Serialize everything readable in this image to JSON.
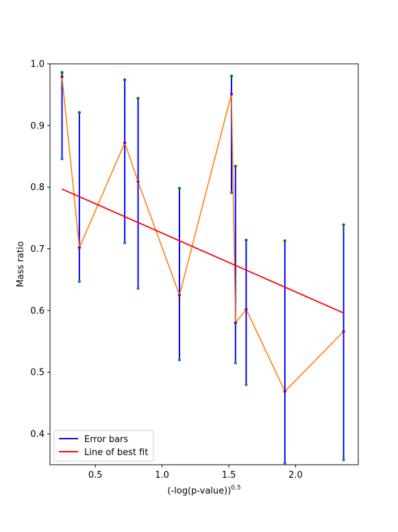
{
  "chart_data": {
    "type": "line",
    "xlabel": "(-log(p-value))",
    "xlabel_superscript": "0.5",
    "ylabel": "Mass ratio",
    "xlim": [
      0.16,
      2.47
    ],
    "ylim": [
      0.35,
      1.0
    ],
    "xticks": [
      "0.5",
      "1.0",
      "1.5",
      "2.0"
    ],
    "xtick_values": [
      0.5,
      1.0,
      1.5,
      2.0
    ],
    "yticks": [
      "0.4",
      "0.5",
      "0.6",
      "0.7",
      "0.8",
      "0.9",
      "1.0"
    ],
    "ytick_values": [
      0.4,
      0.5,
      0.6,
      0.7,
      0.8,
      0.9,
      1.0
    ],
    "legend_position": "lower-left",
    "legend": [
      {
        "label": "Error bars",
        "color": "#0000ff"
      },
      {
        "label": "Line of best fit",
        "color": "#ff0000"
      }
    ],
    "points": [
      {
        "x": 0.25,
        "y": 0.979,
        "lo": 0.846,
        "hi": 0.986
      },
      {
        "x": 0.38,
        "y": 0.702,
        "lo": 0.647,
        "hi": 0.921
      },
      {
        "x": 0.72,
        "y": 0.872,
        "lo": 0.71,
        "hi": 0.974
      },
      {
        "x": 0.82,
        "y": 0.809,
        "lo": 0.636,
        "hi": 0.944
      },
      {
        "x": 1.13,
        "y": 0.625,
        "lo": 0.52,
        "hi": 0.798
      },
      {
        "x": 1.52,
        "y": 0.951,
        "lo": 0.791,
        "hi": 0.98
      },
      {
        "x": 1.55,
        "y": 0.58,
        "lo": 0.515,
        "hi": 0.834
      },
      {
        "x": 1.63,
        "y": 0.602,
        "lo": 0.48,
        "hi": 0.714
      },
      {
        "x": 1.92,
        "y": 0.469,
        "lo": 0.353,
        "hi": 0.713
      },
      {
        "x": 2.36,
        "y": 0.566,
        "lo": 0.358,
        "hi": 0.739
      }
    ],
    "best_fit": {
      "x": [
        0.25,
        2.36
      ],
      "y": [
        0.797,
        0.596
      ]
    },
    "colors": {
      "error_bar": "#0000ff",
      "data_line": "#ff7f0e",
      "best_fit": "#ff0000",
      "upper_marker": "#008000",
      "lower_marker": "#1f77b4",
      "value_marker": "#800080"
    }
  }
}
